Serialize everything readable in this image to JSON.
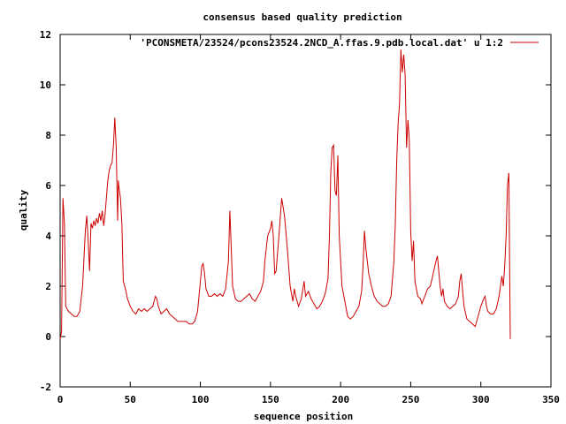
{
  "chart_data": {
    "type": "line",
    "title": "consensus based quality prediction",
    "xlabel": "sequence position",
    "ylabel": "quality",
    "xlim": [
      0,
      350
    ],
    "ylim": [
      -2,
      12
    ],
    "x_ticks": [
      0,
      50,
      100,
      150,
      200,
      250,
      300,
      350
    ],
    "y_ticks": [
      -2,
      0,
      2,
      4,
      6,
      8,
      10,
      12
    ],
    "grid": false,
    "legend_position": "top-right",
    "series": [
      {
        "name": "'PCONSMETA/23524/pcons23524.2NCD_A.ffas.9.pdb.local.dat' u 1:2",
        "color": "#cc0000",
        "points": [
          [
            0,
            -0.1
          ],
          [
            1,
            0.2
          ],
          [
            2,
            5.5
          ],
          [
            3,
            4.5
          ],
          [
            4,
            1.2
          ],
          [
            6,
            1.0
          ],
          [
            8,
            0.9
          ],
          [
            10,
            0.8
          ],
          [
            12,
            0.8
          ],
          [
            14,
            1.0
          ],
          [
            16,
            2.0
          ],
          [
            18,
            4.2
          ],
          [
            19,
            4.8
          ],
          [
            20,
            3.8
          ],
          [
            21,
            2.6
          ],
          [
            22,
            4.5
          ],
          [
            23,
            4.3
          ],
          [
            24,
            4.6
          ],
          [
            25,
            4.4
          ],
          [
            26,
            4.7
          ],
          [
            27,
            4.5
          ],
          [
            28,
            4.9
          ],
          [
            29,
            4.6
          ],
          [
            30,
            5.0
          ],
          [
            31,
            4.4
          ],
          [
            32,
            4.8
          ],
          [
            33,
            5.5
          ],
          [
            34,
            6.2
          ],
          [
            35,
            6.6
          ],
          [
            36,
            6.8
          ],
          [
            37,
            6.9
          ],
          [
            38,
            7.6
          ],
          [
            39,
            8.7
          ],
          [
            40,
            7.5
          ],
          [
            41,
            4.6
          ],
          [
            41.5,
            6.2
          ],
          [
            42,
            5.9
          ],
          [
            43,
            5.5
          ],
          [
            44,
            4.5
          ],
          [
            45,
            2.2
          ],
          [
            47,
            1.8
          ],
          [
            48,
            1.5
          ],
          [
            50,
            1.2
          ],
          [
            52,
            1.0
          ],
          [
            54,
            0.9
          ],
          [
            56,
            1.1
          ],
          [
            58,
            1.0
          ],
          [
            60,
            1.1
          ],
          [
            62,
            1.0
          ],
          [
            64,
            1.1
          ],
          [
            66,
            1.2
          ],
          [
            68,
            1.6
          ],
          [
            69,
            1.5
          ],
          [
            70,
            1.2
          ],
          [
            72,
            0.9
          ],
          [
            74,
            1.0
          ],
          [
            76,
            1.1
          ],
          [
            78,
            0.9
          ],
          [
            80,
            0.8
          ],
          [
            82,
            0.7
          ],
          [
            84,
            0.6
          ],
          [
            86,
            0.6
          ],
          [
            88,
            0.6
          ],
          [
            90,
            0.6
          ],
          [
            92,
            0.5
          ],
          [
            94,
            0.5
          ],
          [
            96,
            0.6
          ],
          [
            98,
            1.0
          ],
          [
            100,
            2.2
          ],
          [
            101,
            2.8
          ],
          [
            102,
            2.9
          ],
          [
            103,
            2.5
          ],
          [
            104,
            1.9
          ],
          [
            106,
            1.6
          ],
          [
            108,
            1.6
          ],
          [
            110,
            1.7
          ],
          [
            112,
            1.6
          ],
          [
            114,
            1.7
          ],
          [
            116,
            1.6
          ],
          [
            118,
            1.9
          ],
          [
            120,
            3.0
          ],
          [
            121,
            5.0
          ],
          [
            122,
            3.5
          ],
          [
            123,
            2.0
          ],
          [
            125,
            1.5
          ],
          [
            127,
            1.4
          ],
          [
            129,
            1.4
          ],
          [
            131,
            1.5
          ],
          [
            133,
            1.6
          ],
          [
            135,
            1.7
          ],
          [
            137,
            1.5
          ],
          [
            139,
            1.4
          ],
          [
            141,
            1.6
          ],
          [
            143,
            1.8
          ],
          [
            145,
            2.2
          ],
          [
            146,
            3.0
          ],
          [
            148,
            4.0
          ],
          [
            150,
            4.3
          ],
          [
            151,
            4.6
          ],
          [
            152,
            4.0
          ],
          [
            153,
            2.5
          ],
          [
            154,
            2.6
          ],
          [
            156,
            4.0
          ],
          [
            158,
            5.5
          ],
          [
            160,
            4.8
          ],
          [
            162,
            3.5
          ],
          [
            164,
            2.0
          ],
          [
            166,
            1.4
          ],
          [
            167,
            1.9
          ],
          [
            168,
            1.6
          ],
          [
            170,
            1.2
          ],
          [
            172,
            1.5
          ],
          [
            174,
            2.2
          ],
          [
            175,
            1.6
          ],
          [
            177,
            1.8
          ],
          [
            179,
            1.5
          ],
          [
            181,
            1.3
          ],
          [
            183,
            1.1
          ],
          [
            185,
            1.2
          ],
          [
            187,
            1.4
          ],
          [
            189,
            1.7
          ],
          [
            191,
            2.3
          ],
          [
            192,
            4.0
          ],
          [
            193,
            6.5
          ],
          [
            194,
            7.5
          ],
          [
            195,
            7.6
          ],
          [
            196,
            5.8
          ],
          [
            197,
            5.6
          ],
          [
            198,
            7.2
          ],
          [
            199,
            4.0
          ],
          [
            201,
            2.0
          ],
          [
            203,
            1.4
          ],
          [
            205,
            0.8
          ],
          [
            207,
            0.7
          ],
          [
            209,
            0.8
          ],
          [
            211,
            1.0
          ],
          [
            213,
            1.2
          ],
          [
            215,
            1.8
          ],
          [
            216,
            2.8
          ],
          [
            217,
            4.2
          ],
          [
            218,
            3.5
          ],
          [
            220,
            2.5
          ],
          [
            222,
            2.0
          ],
          [
            224,
            1.6
          ],
          [
            226,
            1.4
          ],
          [
            228,
            1.3
          ],
          [
            230,
            1.2
          ],
          [
            232,
            1.2
          ],
          [
            234,
            1.3
          ],
          [
            236,
            1.6
          ],
          [
            238,
            3.0
          ],
          [
            239,
            4.5
          ],
          [
            240,
            7.0
          ],
          [
            241,
            8.5
          ],
          [
            242,
            9.2
          ],
          [
            243,
            11.4
          ],
          [
            244,
            10.5
          ],
          [
            245,
            11.2
          ],
          [
            246,
            10.4
          ],
          [
            247,
            7.5
          ],
          [
            248,
            8.6
          ],
          [
            249,
            7.8
          ],
          [
            250,
            4.2
          ],
          [
            251,
            3.0
          ],
          [
            252,
            3.8
          ],
          [
            253,
            2.2
          ],
          [
            255,
            1.6
          ],
          [
            257,
            1.5
          ],
          [
            258,
            1.3
          ],
          [
            260,
            1.6
          ],
          [
            262,
            1.9
          ],
          [
            264,
            2.0
          ],
          [
            266,
            2.5
          ],
          [
            268,
            3.0
          ],
          [
            269,
            3.2
          ],
          [
            270,
            2.6
          ],
          [
            271,
            2.0
          ],
          [
            272,
            1.6
          ],
          [
            273,
            1.9
          ],
          [
            274,
            1.4
          ],
          [
            276,
            1.2
          ],
          [
            278,
            1.1
          ],
          [
            280,
            1.2
          ],
          [
            282,
            1.3
          ],
          [
            284,
            1.6
          ],
          [
            285,
            2.2
          ],
          [
            286,
            2.5
          ],
          [
            287,
            1.8
          ],
          [
            288,
            1.2
          ],
          [
            290,
            0.7
          ],
          [
            292,
            0.6
          ],
          [
            294,
            0.5
          ],
          [
            296,
            0.4
          ],
          [
            298,
            0.8
          ],
          [
            300,
            1.2
          ],
          [
            302,
            1.5
          ],
          [
            303,
            1.6
          ],
          [
            304,
            1.2
          ],
          [
            305,
            1.0
          ],
          [
            307,
            0.9
          ],
          [
            309,
            0.9
          ],
          [
            311,
            1.1
          ],
          [
            313,
            1.6
          ],
          [
            314,
            2.0
          ],
          [
            315,
            2.4
          ],
          [
            316,
            2.0
          ],
          [
            317,
            2.8
          ],
          [
            318,
            4.0
          ],
          [
            319,
            6.0
          ],
          [
            320,
            6.5
          ],
          [
            320.5,
            3.0
          ],
          [
            321,
            -0.1
          ]
        ]
      }
    ]
  }
}
